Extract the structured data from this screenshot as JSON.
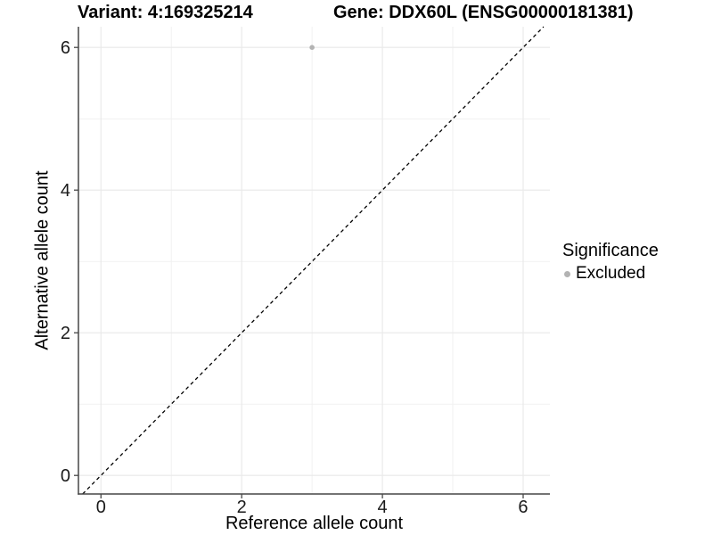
{
  "chart_data": {
    "type": "scatter",
    "title_left": "Variant: 4:169325214",
    "title_right": "Gene: DDX60L (ENSG00000181381)",
    "xlabel": "Reference allele count",
    "ylabel": "Alternative allele count",
    "xlim": [
      -0.32,
      6.38
    ],
    "ylim": [
      -0.26,
      6.29
    ],
    "x_ticks": [
      0,
      2,
      4,
      6
    ],
    "y_ticks": [
      0,
      2,
      4,
      6
    ],
    "x_minor_ticks": [
      1,
      3,
      5
    ],
    "y_minor_ticks": [
      1,
      3,
      5
    ],
    "grid": true,
    "identity_line": {
      "style": "dashed",
      "color": "#000000",
      "equation": "y = x"
    },
    "series": [
      {
        "name": "Excluded",
        "color": "#b3b3b3",
        "points": [
          {
            "x": 3,
            "y": 6
          }
        ]
      }
    ],
    "legend": {
      "title": "Significance",
      "position": "right",
      "items": [
        {
          "label": "Excluded",
          "color": "#b3b3b3"
        }
      ]
    },
    "colors": {
      "grid_major": "#e9e9e9",
      "grid_minor": "#f1f1f1",
      "axis": "#474747",
      "tick_label": "#1a1a1a",
      "text": "#000000"
    }
  }
}
